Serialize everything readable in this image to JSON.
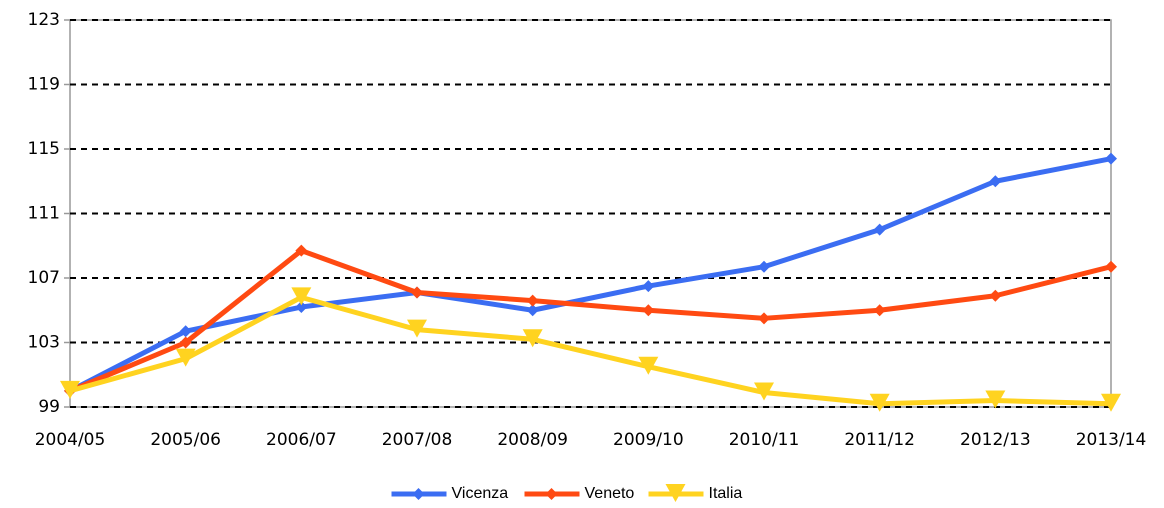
{
  "chart_data": {
    "type": "line",
    "categories": [
      "2004/05",
      "2005/06",
      "2006/07",
      "2007/08",
      "2008/09",
      "2009/10",
      "2010/11",
      "2011/12",
      "2012/13",
      "2013/14"
    ],
    "series": [
      {
        "name": "Vicenza",
        "color": "#3b6df2",
        "marker": "diamond",
        "values": [
          100,
          103.7,
          105.2,
          106.1,
          105.0,
          106.5,
          107.7,
          110.0,
          113.0,
          114.4
        ]
      },
      {
        "name": "Veneto",
        "color": "#ff4a12",
        "marker": "diamond",
        "values": [
          100,
          103.0,
          108.7,
          106.1,
          105.6,
          105.0,
          104.5,
          105.0,
          105.9,
          107.7
        ]
      },
      {
        "name": "Italia",
        "color": "#ffd320",
        "marker": "triangle-down",
        "values": [
          100,
          102.0,
          105.8,
          103.8,
          103.2,
          101.5,
          99.9,
          99.2,
          99.4,
          99.2
        ]
      }
    ],
    "ylim": [
      99,
      123
    ],
    "yticks": [
      99,
      103,
      107,
      111,
      115,
      119,
      123
    ],
    "grid": true,
    "legend": "bottom"
  }
}
